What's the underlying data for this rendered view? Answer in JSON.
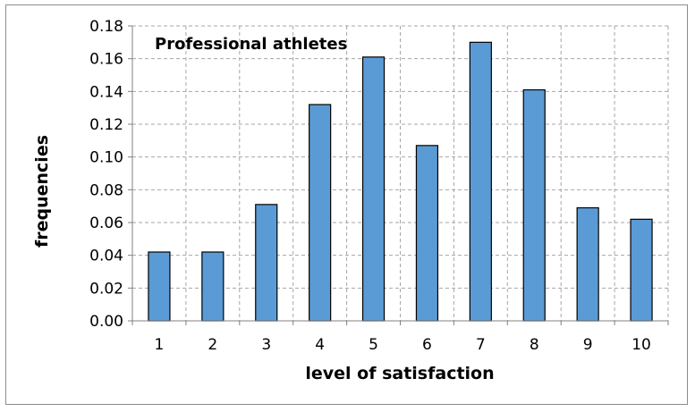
{
  "chart_data": {
    "type": "bar",
    "title": "Professional athletes",
    "xlabel": "level of satisfaction",
    "ylabel": "frequencies",
    "categories": [
      "1",
      "2",
      "3",
      "4",
      "5",
      "6",
      "7",
      "8",
      "9",
      "10"
    ],
    "values": [
      0.042,
      0.042,
      0.071,
      0.132,
      0.161,
      0.107,
      0.17,
      0.141,
      0.069,
      0.062
    ],
    "ylim": [
      0,
      0.18
    ],
    "yticks": [
      "0.00",
      "0.02",
      "0.04",
      "0.06",
      "0.08",
      "0.10",
      "0.12",
      "0.14",
      "0.16",
      "0.18"
    ],
    "grid": true,
    "legend": "none",
    "bar_color": "#5b9bd5",
    "bar_edge_color": "#000000",
    "grid_color": "#a6a6a6"
  }
}
